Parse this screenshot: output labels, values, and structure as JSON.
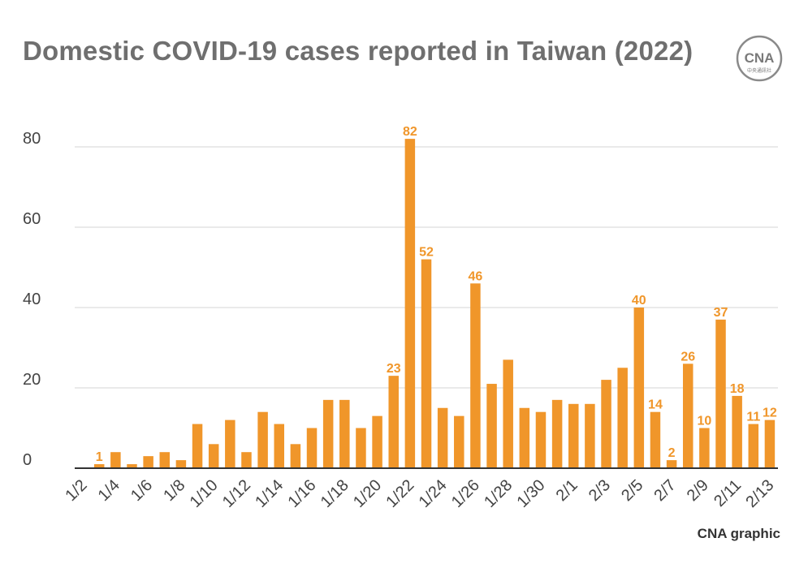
{
  "header": {
    "title": "Domestic COVID-19 cases reported in Taiwan (2022)",
    "logo_text": "CNA",
    "logo_subtext": "中央通訊社"
  },
  "footer": {
    "credit": "CNA graphic"
  },
  "colors": {
    "bar": "#f0962a",
    "label": "#f0962a",
    "grid": "#dddddd",
    "axis": "#333333",
    "title": "#6f6f6f"
  },
  "chart_data": {
    "type": "bar",
    "title": "Domestic COVID-19 cases reported in Taiwan (2022)",
    "xlabel": "",
    "ylabel": "",
    "ylim": [
      0,
      80
    ],
    "yticks": [
      0,
      20,
      40,
      60,
      80
    ],
    "grid": true,
    "categories": [
      "1/2",
      "1/3",
      "1/4",
      "1/5",
      "1/6",
      "1/7",
      "1/8",
      "1/9",
      "1/10",
      "1/11",
      "1/12",
      "1/13",
      "1/14",
      "1/15",
      "1/16",
      "1/17",
      "1/18",
      "1/19",
      "1/20",
      "1/21",
      "1/22",
      "1/23",
      "1/24",
      "1/25",
      "1/26",
      "1/27",
      "1/28",
      "1/29",
      "1/30",
      "1/31",
      "2/1",
      "2/2",
      "2/3",
      "2/4",
      "2/5",
      "2/6",
      "2/7",
      "2/8",
      "2/9",
      "2/10",
      "2/11",
      "2/12",
      "2/13"
    ],
    "tick_labels": [
      "1/2",
      "1/4",
      "1/6",
      "1/8",
      "1/10",
      "1/12",
      "1/14",
      "1/16",
      "1/18",
      "1/20",
      "1/22",
      "1/24",
      "1/26",
      "1/28",
      "1/30",
      "2/1",
      "2/3",
      "2/5",
      "2/7",
      "2/9",
      "2/11",
      "2/13"
    ],
    "values": [
      0,
      1,
      4,
      1,
      3,
      4,
      2,
      11,
      6,
      12,
      4,
      14,
      11,
      6,
      10,
      17,
      17,
      10,
      13,
      23,
      82,
      52,
      15,
      13,
      46,
      21,
      27,
      15,
      14,
      17,
      16,
      16,
      22,
      25,
      40,
      14,
      2,
      26,
      10,
      37,
      18,
      11,
      12
    ],
    "data_labels": [
      {
        "category": "1/3",
        "value": 1
      },
      {
        "category": "1/21",
        "value": 23
      },
      {
        "category": "1/22",
        "value": 82
      },
      {
        "category": "1/23",
        "value": 52
      },
      {
        "category": "1/26",
        "value": 46
      },
      {
        "category": "2/5",
        "value": 40
      },
      {
        "category": "2/6",
        "value": 14
      },
      {
        "category": "2/7",
        "value": 2
      },
      {
        "category": "2/8",
        "value": 26
      },
      {
        "category": "2/9",
        "value": 10
      },
      {
        "category": "2/10",
        "value": 37
      },
      {
        "category": "2/11",
        "value": 18
      },
      {
        "category": "2/12",
        "value": 11
      },
      {
        "category": "2/13",
        "value": 12
      }
    ]
  }
}
